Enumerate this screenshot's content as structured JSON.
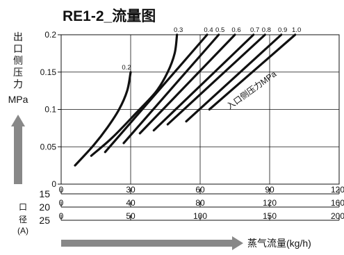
{
  "chart_data": {
    "type": "line",
    "title": "RE1-2_流量图",
    "ylabel_lines": [
      "出",
      "口",
      "侧",
      "压",
      "力",
      "MPa"
    ],
    "xlabel": "蒸气流量(kg/h)",
    "port_label_lines": [
      "口",
      "径",
      "(A)"
    ],
    "series_annotation": "入口侧压力MPa",
    "ylim": [
      0,
      0.2
    ],
    "y_ticks": [
      0,
      0.05,
      0.1,
      0.15,
      0.2
    ],
    "y_tick_labels": [
      "0",
      "0.05",
      "0.1",
      "0.15",
      "0.2"
    ],
    "xlim": [
      0,
      120
    ],
    "x_axes": [
      {
        "size": "15",
        "max": 120,
        "ticks": [
          0,
          30,
          60,
          90,
          120
        ],
        "labels": [
          "0",
          "30",
          "60",
          "90",
          "120"
        ]
      },
      {
        "size": "20",
        "max": 160,
        "ticks": [
          0,
          40,
          80,
          120,
          160
        ],
        "labels": [
          "0",
          "40",
          "80",
          "120",
          "160"
        ]
      },
      {
        "size": "25",
        "max": 200,
        "ticks": [
          0,
          50,
          100,
          150,
          200
        ],
        "labels": [
          "0",
          "50",
          "100",
          "150",
          "200"
        ]
      }
    ],
    "grid": true,
    "series": [
      {
        "name": "0.2",
        "points": [
          [
            6,
            0.025
          ],
          [
            14,
            0.052
          ],
          [
            20,
            0.076
          ],
          [
            25,
            0.1
          ],
          [
            28.5,
            0.125
          ],
          [
            30,
            0.15
          ]
        ]
      },
      {
        "name": "0.3",
        "points": [
          [
            13,
            0.038
          ],
          [
            22,
            0.062
          ],
          [
            32,
            0.094
          ],
          [
            41,
            0.124
          ],
          [
            46,
            0.15
          ],
          [
            49,
            0.175
          ],
          [
            50,
            0.2
          ]
        ]
      },
      {
        "name": "0.4",
        "points": [
          [
            19,
            0.043
          ],
          [
            63,
            0.2
          ]
        ]
      },
      {
        "name": "0.5",
        "points": [
          [
            27,
            0.055
          ],
          [
            68,
            0.2
          ]
        ]
      },
      {
        "name": "0.6",
        "points": [
          [
            34,
            0.068
          ],
          [
            75,
            0.2
          ]
        ]
      },
      {
        "name": "0.7",
        "points": [
          [
            40,
            0.072
          ],
          [
            83,
            0.2
          ]
        ]
      },
      {
        "name": "0.8",
        "points": [
          [
            46,
            0.08
          ],
          [
            88,
            0.2
          ]
        ]
      },
      {
        "name": "0.9",
        "points": [
          [
            54,
            0.084
          ],
          [
            95,
            0.2
          ]
        ]
      },
      {
        "name": "1.0",
        "points": [
          [
            64,
            0.1
          ],
          [
            101,
            0.2
          ]
        ]
      }
    ]
  }
}
